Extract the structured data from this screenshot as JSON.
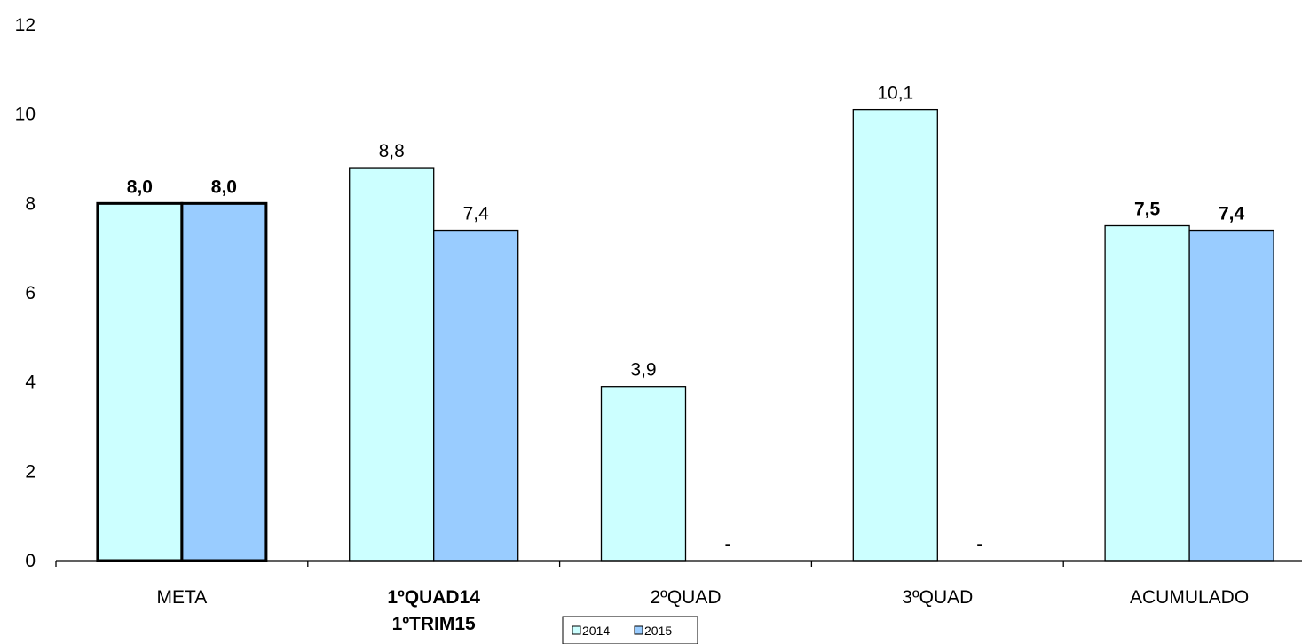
{
  "chart_data": {
    "type": "bar",
    "categories": [
      {
        "lines": [
          "META"
        ],
        "bold": false
      },
      {
        "lines": [
          "1ºQUAD14",
          "1ºTRIM15"
        ],
        "bold": true
      },
      {
        "lines": [
          "2ºQUAD"
        ],
        "bold": false
      },
      {
        "lines": [
          "3ºQUAD"
        ],
        "bold": false
      },
      {
        "lines": [
          "ACUMULADO"
        ],
        "bold": false
      }
    ],
    "series": [
      {
        "name": "2014",
        "color": "#ccffff",
        "values": [
          8.0,
          8.8,
          3.9,
          10.1,
          7.5
        ],
        "labels": [
          "8,0",
          "8,8",
          "3,9",
          "10,1",
          "7,5"
        ]
      },
      {
        "name": "2015",
        "color": "#99ccff",
        "values": [
          8.0,
          7.4,
          0,
          0,
          7.4
        ],
        "labels": [
          "8,0",
          "7,4",
          "-",
          "-",
          "7,4"
        ]
      }
    ],
    "emphasis": {
      "thick_border_categories": [
        0
      ],
      "bold_label_categories": [
        0,
        4
      ]
    },
    "y_ticks": [
      "0",
      "2",
      "4",
      "6",
      "8",
      "10",
      "12"
    ],
    "ylim": [
      0,
      12
    ],
    "grid": false,
    "legend_position": "bottom-center",
    "title": "",
    "xlabel": "",
    "ylabel": ""
  }
}
